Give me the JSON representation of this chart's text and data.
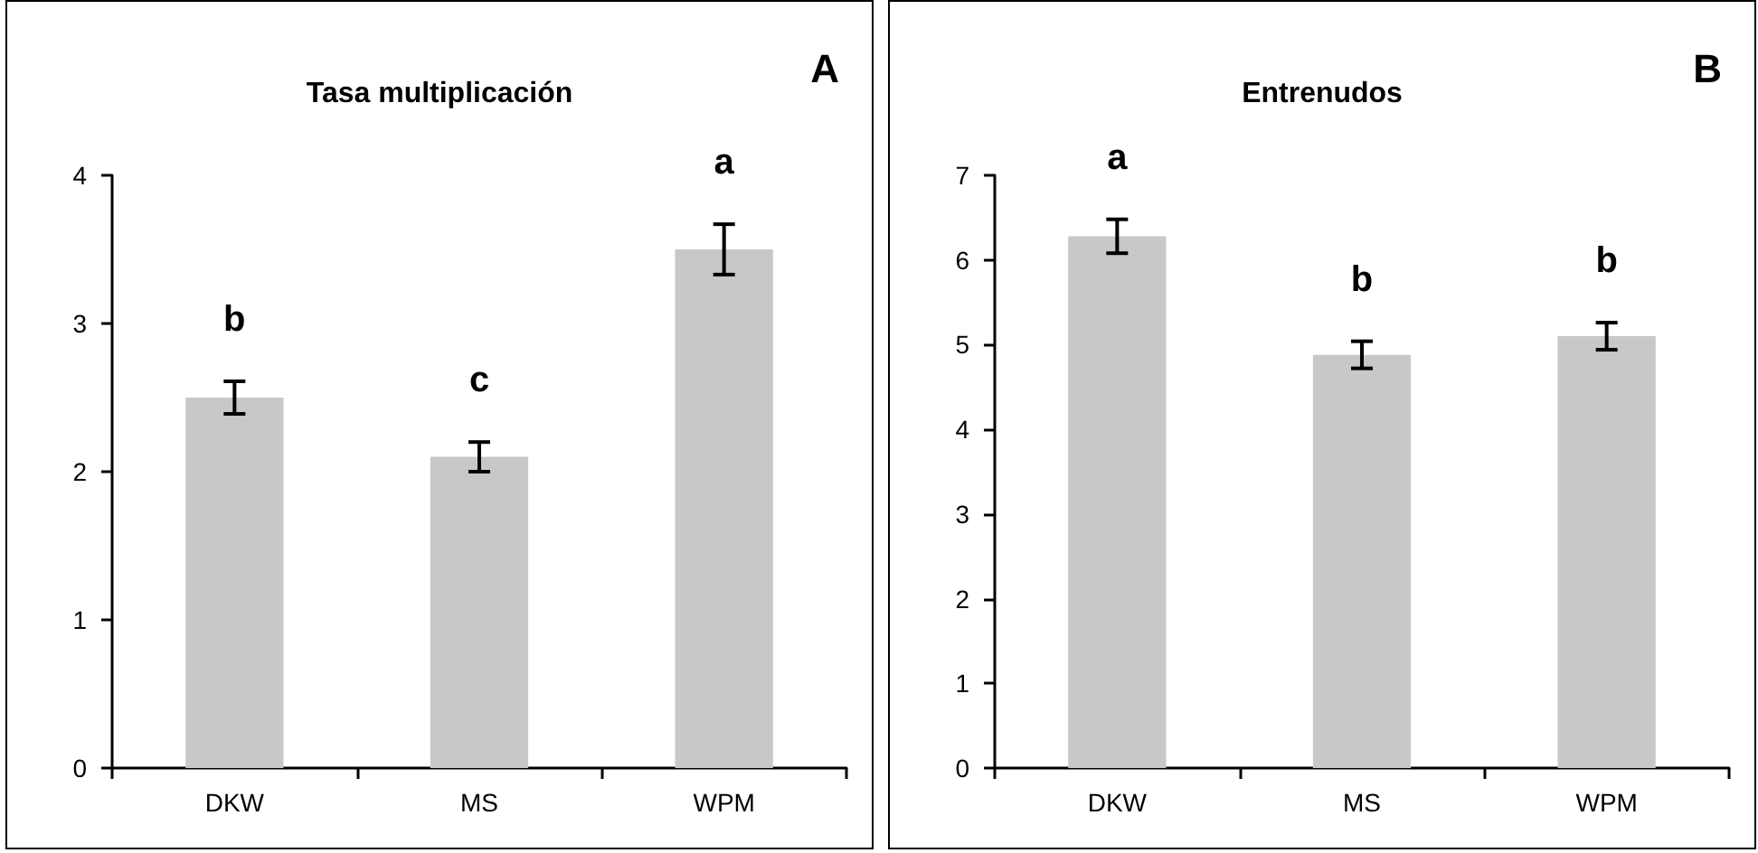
{
  "chart_data": [
    {
      "type": "bar",
      "title": "Tasa multiplicación",
      "categories": [
        "DKW",
        "MS",
        "WPM"
      ],
      "values": [
        2.5,
        2.1,
        3.5
      ],
      "errors": [
        0.11,
        0.1,
        0.17
      ],
      "color": "#c8c8c8",
      "ylim": [
        0,
        4
      ],
      "yticks": [
        0,
        1,
        2,
        3,
        4
      ],
      "grid": false,
      "annotations": [
        "A",
        "b",
        "c",
        "a"
      ]
    },
    {
      "type": "bar",
      "title": "Entrenudos",
      "categories": [
        "DKW",
        "MS",
        "WPM"
      ],
      "values": [
        6.28,
        4.88,
        5.1
      ],
      "errors": [
        0.2,
        0.16,
        0.16
      ],
      "color": "#c8c8c8",
      "ylim": [
        0,
        7
      ],
      "yticks": [
        0,
        1,
        2,
        3,
        4,
        5,
        6,
        7
      ],
      "grid": false,
      "annotations": [
        "B",
        "a",
        "b",
        "b"
      ]
    }
  ]
}
